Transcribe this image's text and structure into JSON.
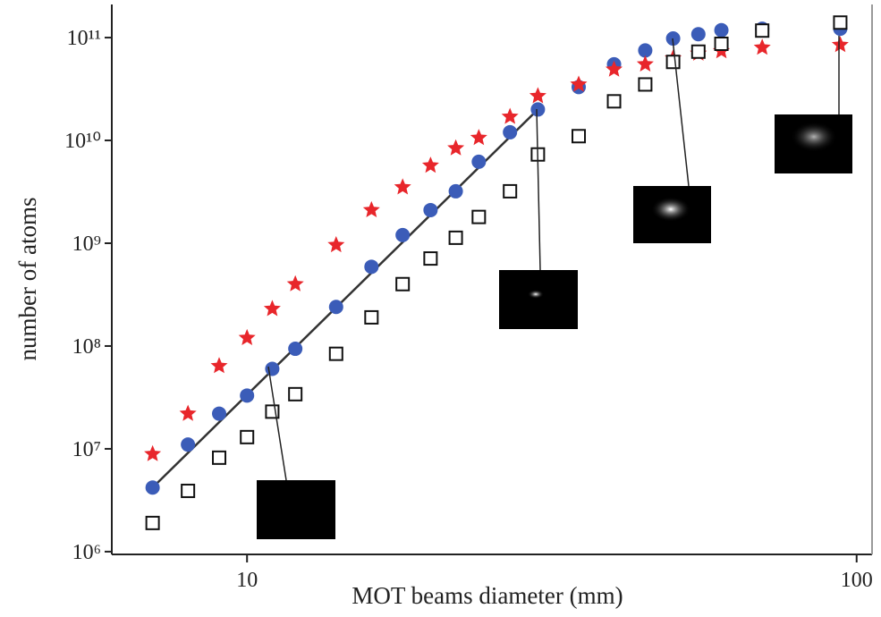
{
  "chart_data": {
    "type": "scatter",
    "x_label": "MOT beams diameter (mm)",
    "y_label": "number of atoms",
    "x_scale": "log",
    "y_scale": "log",
    "xlim": [
      6,
      106
    ],
    "ylim": [
      940000,
      210000000000
    ],
    "xticks": [
      10,
      100
    ],
    "yticks": [
      {
        "value": 1000000,
        "label": "10⁶"
      },
      {
        "value": 10000000,
        "label": "10⁷"
      },
      {
        "value": 100000000,
        "label": "10⁸"
      },
      {
        "value": 1000000000,
        "label": "10⁹"
      },
      {
        "value": 10000000000,
        "label": "10¹⁰"
      },
      {
        "value": 100000000000,
        "label": "10¹¹"
      }
    ],
    "x": [
      7,
      8,
      9,
      10,
      11,
      12,
      14,
      16,
      18,
      20,
      22,
      24,
      27,
      30,
      35,
      40,
      45,
      50,
      55,
      60,
      70,
      94
    ],
    "series": [
      {
        "color": "#3b5cb8",
        "marker": "circle",
        "values": [
          4200000,
          11000000,
          22000000,
          33000000,
          60000000,
          94000000,
          240000000,
          590000000,
          1200000000,
          2100000000,
          3200000000,
          6200000000,
          12000000000,
          20000000000,
          33000000000,
          55000000000,
          75000000000,
          98000000000,
          108000000000,
          118000000000,
          122000000000,
          122000000000
        ]
      },
      {
        "color": "#e8262b",
        "marker": "star",
        "values": [
          8900000,
          22000000,
          64000000,
          120000000,
          230000000,
          400000000,
          960000000,
          2100000000,
          3500000000,
          5700000000,
          8400000000,
          10600000000,
          17000000000,
          27000000000,
          35000000000,
          49000000000,
          55000000000,
          63000000000,
          70000000000,
          74000000000,
          80000000000,
          85000000000
        ]
      },
      {
        "color": "#111111",
        "marker": "square",
        "values": [
          1900000,
          3900000,
          8200000,
          13000000,
          23000000,
          34000000,
          84000000,
          190000000,
          400000000,
          710000000,
          1130000000,
          1800000000,
          3200000000,
          7300000000,
          11000000000,
          24000000000,
          35000000000,
          58000000000,
          73000000000,
          87000000000,
          117000000000,
          140000000000
        ]
      },
      {
        "color": "#333333",
        "marker": "line",
        "x": [
          7,
          30
        ],
        "values": [
          4200000,
          20000000000
        ]
      }
    ]
  }
}
